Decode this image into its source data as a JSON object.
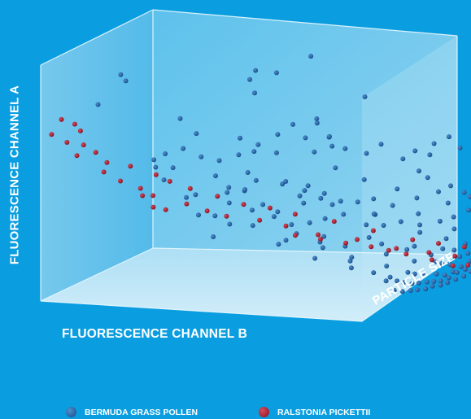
{
  "chart_data": {
    "type": "scatter3d",
    "title": "",
    "xlabel": "FLUORESCENCE CHANNEL B",
    "ylabel": "FLUORESCENCE CHANNEL A",
    "zlabel": "PARTICLE SIZE",
    "legend_position": "bottom",
    "series": [
      {
        "name": "BERMUDA GRASS POLLEN",
        "color": "#1b5fa6",
        "points": [
          [
            0.22,
            0.8,
            0.1
          ],
          [
            0.36,
            0.9,
            0.12
          ],
          [
            0.52,
            0.83,
            0.08
          ],
          [
            0.57,
            0.93,
            0.45
          ],
          [
            0.66,
            0.86,
            0.4
          ],
          [
            0.74,
            0.88,
            0.45
          ],
          [
            0.88,
            0.93,
            0.5
          ],
          [
            0.84,
            0.75,
            0.35
          ],
          [
            0.79,
            0.68,
            0.55
          ],
          [
            0.9,
            0.77,
            0.65
          ],
          [
            0.93,
            0.62,
            0.5
          ],
          [
            0.7,
            0.63,
            0.62
          ],
          [
            0.81,
            0.6,
            0.58
          ],
          [
            0.6,
            0.7,
            0.55
          ],
          [
            0.92,
            0.45,
            0.8
          ],
          [
            0.75,
            0.48,
            0.62
          ],
          [
            0.69,
            0.56,
            0.58
          ],
          [
            0.85,
            0.52,
            0.78
          ],
          [
            0.5,
            0.7,
            0.25
          ],
          [
            0.44,
            0.66,
            0.32
          ],
          [
            0.58,
            0.62,
            0.4
          ],
          [
            0.64,
            0.55,
            0.42
          ],
          [
            0.55,
            0.58,
            0.52
          ],
          [
            0.71,
            0.45,
            0.72
          ],
          [
            0.83,
            0.45,
            0.86
          ],
          [
            0.95,
            0.52,
            0.82
          ],
          [
            0.99,
            0.6,
            0.86
          ],
          [
            0.78,
            0.4,
            0.79
          ],
          [
            0.73,
            0.36,
            0.74
          ],
          [
            0.64,
            0.42,
            0.58
          ],
          [
            0.57,
            0.45,
            0.54
          ],
          [
            0.48,
            0.5,
            0.46
          ],
          [
            0.42,
            0.42,
            0.42
          ],
          [
            0.62,
            0.35,
            0.66
          ],
          [
            0.69,
            0.3,
            0.76
          ],
          [
            0.76,
            0.3,
            0.86
          ],
          [
            0.83,
            0.34,
            0.92
          ],
          [
            0.89,
            0.36,
            0.96
          ],
          [
            0.98,
            0.4,
            0.95
          ],
          [
            0.94,
            0.3,
            0.98
          ],
          [
            0.87,
            0.26,
            0.98
          ],
          [
            0.8,
            0.23,
            0.95
          ],
          [
            0.74,
            0.2,
            0.95
          ],
          [
            0.67,
            0.24,
            0.9
          ],
          [
            0.6,
            0.28,
            0.82
          ],
          [
            0.55,
            0.33,
            0.72
          ],
          [
            0.5,
            0.38,
            0.62
          ],
          [
            0.52,
            0.3,
            0.8
          ],
          [
            0.46,
            0.33,
            0.7
          ],
          [
            0.4,
            0.36,
            0.58
          ],
          [
            0.36,
            0.3,
            0.52
          ],
          [
            0.45,
            0.25,
            0.7
          ],
          [
            0.51,
            0.22,
            0.85
          ],
          [
            0.58,
            0.2,
            0.92
          ],
          [
            0.64,
            0.18,
            0.98
          ],
          [
            0.7,
            0.16,
            0.99
          ],
          [
            0.78,
            0.17,
            0.99
          ],
          [
            0.85,
            0.18,
            0.99
          ],
          [
            0.92,
            0.2,
            0.99
          ],
          [
            0.97,
            0.24,
            0.98
          ],
          [
            0.99,
            0.32,
            0.96
          ],
          [
            0.61,
            0.12,
            0.99
          ],
          [
            0.67,
            0.1,
            0.99
          ],
          [
            0.56,
            0.14,
            0.99
          ],
          [
            0.48,
            0.16,
            0.96
          ],
          [
            0.42,
            0.2,
            0.9
          ],
          [
            0.36,
            0.24,
            0.8
          ],
          [
            0.31,
            0.26,
            0.64
          ],
          [
            0.28,
            0.32,
            0.48
          ],
          [
            0.33,
            0.4,
            0.46
          ],
          [
            0.38,
            0.5,
            0.4
          ],
          [
            0.27,
            0.44,
            0.38
          ],
          [
            0.3,
            0.54,
            0.3
          ],
          [
            0.24,
            0.36,
            0.4
          ],
          [
            0.2,
            0.28,
            0.46
          ],
          [
            0.47,
            0.42,
            0.62
          ],
          [
            0.53,
            0.4,
            0.66
          ],
          [
            0.58,
            0.38,
            0.7
          ],
          [
            0.63,
            0.32,
            0.78
          ],
          [
            0.68,
            0.28,
            0.84
          ],
          [
            0.72,
            0.26,
            0.88
          ],
          [
            0.77,
            0.27,
            0.92
          ],
          [
            0.82,
            0.28,
            0.94
          ],
          [
            0.88,
            0.3,
            0.96
          ],
          [
            0.91,
            0.24,
            0.99
          ],
          [
            0.74,
            0.12,
            0.99
          ],
          [
            0.8,
            0.12,
            0.99
          ],
          [
            0.86,
            0.14,
            0.99
          ],
          [
            0.53,
            0.18,
            0.99
          ],
          [
            0.45,
            0.22,
            0.95
          ],
          [
            0.39,
            0.28,
            0.86
          ],
          [
            0.34,
            0.34,
            0.7
          ],
          [
            0.25,
            0.4,
            0.56
          ],
          [
            0.22,
            0.5,
            0.5
          ],
          [
            0.18,
            0.45,
            0.62
          ],
          [
            0.15,
            0.38,
            0.72
          ],
          [
            0.12,
            0.32,
            0.82
          ],
          [
            0.26,
            0.22,
            0.86
          ],
          [
            0.3,
            0.18,
            0.95
          ],
          [
            0.36,
            0.14,
            0.99
          ],
          [
            0.41,
            0.12,
            0.99
          ],
          [
            0.47,
            0.1,
            0.99
          ],
          [
            0.57,
            0.08,
            0.99
          ],
          [
            0.63,
            0.06,
            0.99
          ],
          [
            0.69,
            0.06,
            0.99
          ],
          [
            0.75,
            0.07,
            0.99
          ],
          [
            0.81,
            0.08,
            0.99
          ],
          [
            0.88,
            0.1,
            0.99
          ],
          [
            0.94,
            0.14,
            0.99
          ],
          [
            0.97,
            0.18,
            0.99
          ],
          [
            0.99,
            0.28,
            0.99
          ],
          [
            0.95,
            0.36,
            0.92
          ],
          [
            0.9,
            0.4,
            0.9
          ],
          [
            0.86,
            0.38,
            0.88
          ],
          [
            0.8,
            0.36,
            0.84
          ],
          [
            0.72,
            0.34,
            0.8
          ],
          [
            0.66,
            0.36,
            0.72
          ],
          [
            0.61,
            0.4,
            0.64
          ],
          [
            0.56,
            0.42,
            0.6
          ],
          [
            0.49,
            0.46,
            0.56
          ],
          [
            0.44,
            0.48,
            0.5
          ],
          [
            0.4,
            0.44,
            0.48
          ],
          [
            0.35,
            0.46,
            0.5
          ],
          [
            0.32,
            0.36,
            0.6
          ],
          [
            0.29,
            0.3,
            0.68
          ],
          [
            0.24,
            0.26,
            0.78
          ],
          [
            0.2,
            0.22,
            0.88
          ],
          [
            0.18,
            0.18,
            0.96
          ],
          [
            0.23,
            0.15,
            0.99
          ],
          [
            0.28,
            0.12,
            0.99
          ],
          [
            0.33,
            0.1,
            0.99
          ],
          [
            0.39,
            0.08,
            0.99
          ],
          [
            0.44,
            0.07,
            0.99
          ],
          [
            0.5,
            0.06,
            0.99
          ],
          [
            0.55,
            0.05,
            0.99
          ],
          [
            0.6,
            0.04,
            0.99
          ],
          [
            0.66,
            0.04,
            0.99
          ],
          [
            0.72,
            0.05,
            0.99
          ],
          [
            0.78,
            0.05,
            0.99
          ],
          [
            0.84,
            0.06,
            0.99
          ],
          [
            0.9,
            0.06,
            0.99
          ],
          [
            0.93,
            0.1,
            0.99
          ],
          [
            0.96,
            0.12,
            0.99
          ],
          [
            0.99,
            0.2,
            0.99
          ],
          [
            0.99,
            0.48,
            0.96
          ],
          [
            0.97,
            0.56,
            0.9
          ],
          [
            0.93,
            0.58,
            0.84
          ],
          [
            0.89,
            0.55,
            0.8
          ],
          [
            0.84,
            0.58,
            0.72
          ],
          [
            0.78,
            0.55,
            0.7
          ],
          [
            0.72,
            0.58,
            0.66
          ],
          [
            0.67,
            0.6,
            0.64
          ],
          [
            0.62,
            0.64,
            0.58
          ],
          [
            0.56,
            0.66,
            0.52
          ],
          [
            0.51,
            0.62,
            0.48
          ],
          [
            0.46,
            0.58,
            0.44
          ],
          [
            0.41,
            0.56,
            0.4
          ],
          [
            0.37,
            0.58,
            0.36
          ],
          [
            0.33,
            0.62,
            0.32
          ],
          [
            0.29,
            0.6,
            0.28
          ],
          [
            0.25,
            0.58,
            0.26
          ],
          [
            0.21,
            0.56,
            0.28
          ],
          [
            0.17,
            0.52,
            0.32
          ],
          [
            0.14,
            0.46,
            0.4
          ],
          [
            0.11,
            0.4,
            0.5
          ],
          [
            0.1,
            0.3,
            0.7
          ],
          [
            0.13,
            0.24,
            0.8
          ],
          [
            0.16,
            0.2,
            0.9
          ],
          [
            0.2,
            0.14,
            0.99
          ],
          [
            0.26,
            0.08,
            0.99
          ],
          [
            0.32,
            0.06,
            0.99
          ],
          [
            0.38,
            0.05,
            0.99
          ],
          [
            0.43,
            0.04,
            0.99
          ],
          [
            0.49,
            0.03,
            0.99
          ],
          [
            0.54,
            0.03,
            0.99
          ],
          [
            0.6,
            0.02,
            0.99
          ],
          [
            0.65,
            0.02,
            0.99
          ],
          [
            0.71,
            0.02,
            0.99
          ],
          [
            0.77,
            0.02,
            0.99
          ],
          [
            0.82,
            0.03,
            0.99
          ],
          [
            0.87,
            0.03,
            0.99
          ],
          [
            0.92,
            0.04,
            0.99
          ],
          [
            0.96,
            0.06,
            0.99
          ],
          [
            0.98,
            0.09,
            0.99
          ],
          [
            0.99,
            0.14,
            0.99
          ]
        ]
      },
      {
        "name": "RALSTONIA PICKETTII",
        "color": "#a8182c",
        "points": [
          [
            0.04,
            0.7,
            0.02
          ],
          [
            0.07,
            0.76,
            0.04
          ],
          [
            0.09,
            0.66,
            0.05
          ],
          [
            0.13,
            0.73,
            0.06
          ],
          [
            0.15,
            0.64,
            0.08
          ],
          [
            0.18,
            0.69,
            0.06
          ],
          [
            0.2,
            0.6,
            0.1
          ],
          [
            0.12,
            0.6,
            0.07
          ],
          [
            0.24,
            0.55,
            0.12
          ],
          [
            0.27,
            0.5,
            0.1
          ],
          [
            0.3,
            0.46,
            0.14
          ],
          [
            0.33,
            0.52,
            0.16
          ],
          [
            0.36,
            0.42,
            0.18
          ],
          [
            0.32,
            0.4,
            0.2
          ],
          [
            0.38,
            0.48,
            0.22
          ],
          [
            0.41,
            0.38,
            0.2
          ],
          [
            0.44,
            0.44,
            0.24
          ],
          [
            0.3,
            0.36,
            0.24
          ],
          [
            0.35,
            0.34,
            0.26
          ],
          [
            0.47,
            0.34,
            0.28
          ],
          [
            0.5,
            0.4,
            0.28
          ],
          [
            0.53,
            0.3,
            0.32
          ],
          [
            0.56,
            0.36,
            0.34
          ],
          [
            0.58,
            0.27,
            0.36
          ],
          [
            0.61,
            0.32,
            0.4
          ],
          [
            0.63,
            0.25,
            0.44
          ],
          [
            0.66,
            0.3,
            0.46
          ],
          [
            0.68,
            0.22,
            0.5
          ],
          [
            0.7,
            0.27,
            0.52
          ],
          [
            0.72,
            0.18,
            0.58
          ],
          [
            0.74,
            0.24,
            0.62
          ],
          [
            0.76,
            0.16,
            0.68
          ],
          [
            0.78,
            0.2,
            0.72
          ],
          [
            0.8,
            0.12,
            0.78
          ],
          [
            0.82,
            0.16,
            0.82
          ],
          [
            0.84,
            0.1,
            0.86
          ],
          [
            0.86,
            0.14,
            0.88
          ],
          [
            0.88,
            0.08,
            0.92
          ],
          [
            0.9,
            0.12,
            0.94
          ],
          [
            0.92,
            0.06,
            0.97
          ],
          [
            0.94,
            0.1,
            0.98
          ],
          [
            0.95,
            0.04,
            0.99
          ],
          [
            0.97,
            0.08,
            0.99
          ],
          [
            0.85,
            0.05,
            0.97
          ],
          [
            0.89,
            0.02,
            0.99
          ],
          [
            0.79,
            0.06,
            0.95
          ],
          [
            0.76,
            0.09,
            0.9
          ],
          [
            0.72,
            0.12,
            0.84
          ],
          [
            0.69,
            0.14,
            0.8
          ],
          [
            0.66,
            0.16,
            0.76
          ],
          [
            0.62,
            0.18,
            0.7
          ],
          [
            0.58,
            0.2,
            0.64
          ],
          [
            0.54,
            0.22,
            0.58
          ],
          [
            0.91,
            0.01,
            0.99
          ],
          [
            0.96,
            0.02,
            0.99
          ]
        ]
      }
    ]
  },
  "labels": {
    "xlabel": "FLUORESCENCE CHANNEL B",
    "ylabel": "FLUORESCENCE CHANNEL A",
    "zlabel": "PARTICLE SIZE"
  },
  "legend": [
    {
      "label": "BERMUDA GRASS POLLEN",
      "color": "#1b5fa6"
    },
    {
      "label": "RALSTONIA PICKETTII",
      "color": "#a8182c"
    }
  ],
  "colors": {
    "background": "#0a9ee0",
    "box_face": "#bfe6f7",
    "box_edge": "#e6f6fd"
  }
}
